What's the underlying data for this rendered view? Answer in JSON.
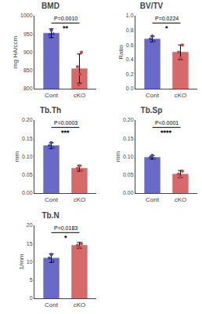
{
  "chart_data": [
    {
      "type": "bar",
      "title": "BMD",
      "ylabel": "mg HA/ccm",
      "categories": [
        "Cont",
        "cKO"
      ],
      "values": [
        952,
        855
      ],
      "errors": [
        12,
        40
      ],
      "points": [
        [
          948,
          960,
          950
        ],
        [
          860,
          810,
          840,
          900
        ]
      ],
      "colors": [
        "#4444bb",
        "#cc4444"
      ],
      "ylim": [
        800,
        1000
      ],
      "yticks": [
        800,
        850,
        900,
        950,
        1000
      ],
      "annotations": [
        "P=0.0010",
        "**"
      ],
      "grid": false
    },
    {
      "type": "bar",
      "title": "BV/TV",
      "ylabel": "Ratio",
      "categories": [
        "Cont",
        "cKO"
      ],
      "values": [
        0.68,
        0.5
      ],
      "errors": [
        0.04,
        0.1
      ],
      "points": [
        [
          0.68,
          0.72,
          0.65
        ],
        [
          0.5,
          0.42,
          0.6
        ]
      ],
      "colors": [
        "#4444bb",
        "#cc4444"
      ],
      "ylim": [
        0.0,
        1.0
      ],
      "yticks": [
        {
          "value": 0.0,
          "label": "0.0"
        },
        0.2,
        0.4,
        0.6,
        0.8,
        {
          "value": 1.0,
          "label": "1.0"
        }
      ],
      "annotations": [
        "P=0.0224",
        "*"
      ],
      "grid": false
    },
    {
      "type": "bar",
      "title": "Tb.Th",
      "ylabel": "mm",
      "categories": [
        "Cont",
        "cKO"
      ],
      "values": [
        0.13,
        0.068
      ],
      "errors": [
        0.008,
        0.008
      ],
      "points": [
        [
          0.13,
          0.138,
          0.124
        ],
        [
          0.068,
          0.075,
          0.062
        ]
      ],
      "colors": [
        "#4444bb",
        "#cc4444"
      ],
      "ylim": [
        0.0,
        0.2
      ],
      "yticks": [
        {
          "value": 0.0,
          "label": "0.00"
        },
        {
          "value": 0.05,
          "label": "0.05"
        },
        {
          "value": 0.1,
          "label": "0.10"
        },
        {
          "value": 0.15,
          "label": "0.15"
        },
        {
          "value": 0.2,
          "label": "0.20"
        }
      ],
      "annotations": [
        "P=0.0003",
        "***"
      ],
      "grid": false
    },
    {
      "type": "bar",
      "title": "Tb.Sp",
      "ylabel": "mm",
      "categories": [
        "Cont",
        "cKO"
      ],
      "values": [
        0.098,
        0.052
      ],
      "errors": [
        0.005,
        0.01
      ],
      "points": [
        [
          0.098,
          0.103,
          0.094
        ],
        [
          0.052,
          0.044,
          0.06
        ]
      ],
      "colors": [
        "#4444bb",
        "#cc4444"
      ],
      "ylim": [
        0.0,
        0.2
      ],
      "yticks": [
        {
          "value": 0.0,
          "label": "0.00"
        },
        {
          "value": 0.05,
          "label": "0.05"
        },
        {
          "value": 0.1,
          "label": "0.10"
        },
        {
          "value": 0.15,
          "label": "0.15"
        },
        {
          "value": 0.2,
          "label": "0.20"
        }
      ],
      "annotations": [
        "P<0.0001",
        "****"
      ],
      "grid": false
    },
    {
      "type": "bar",
      "title": "Tb.N",
      "ylabel": "1/mm",
      "categories": [
        "Cont",
        "cKO"
      ],
      "values": [
        11.0,
        14.5
      ],
      "errors": [
        1.2,
        0.8
      ],
      "points": [
        [
          11.0,
          12.0,
          10.2
        ],
        [
          14.5,
          14.0,
          15.0
        ]
      ],
      "colors": [
        "#4444bb",
        "#cc4444"
      ],
      "ylim": [
        0,
        20
      ],
      "yticks": [
        0,
        5,
        10,
        15,
        20
      ],
      "annotations": [
        "P=0.0183",
        "*"
      ],
      "grid": false
    }
  ]
}
